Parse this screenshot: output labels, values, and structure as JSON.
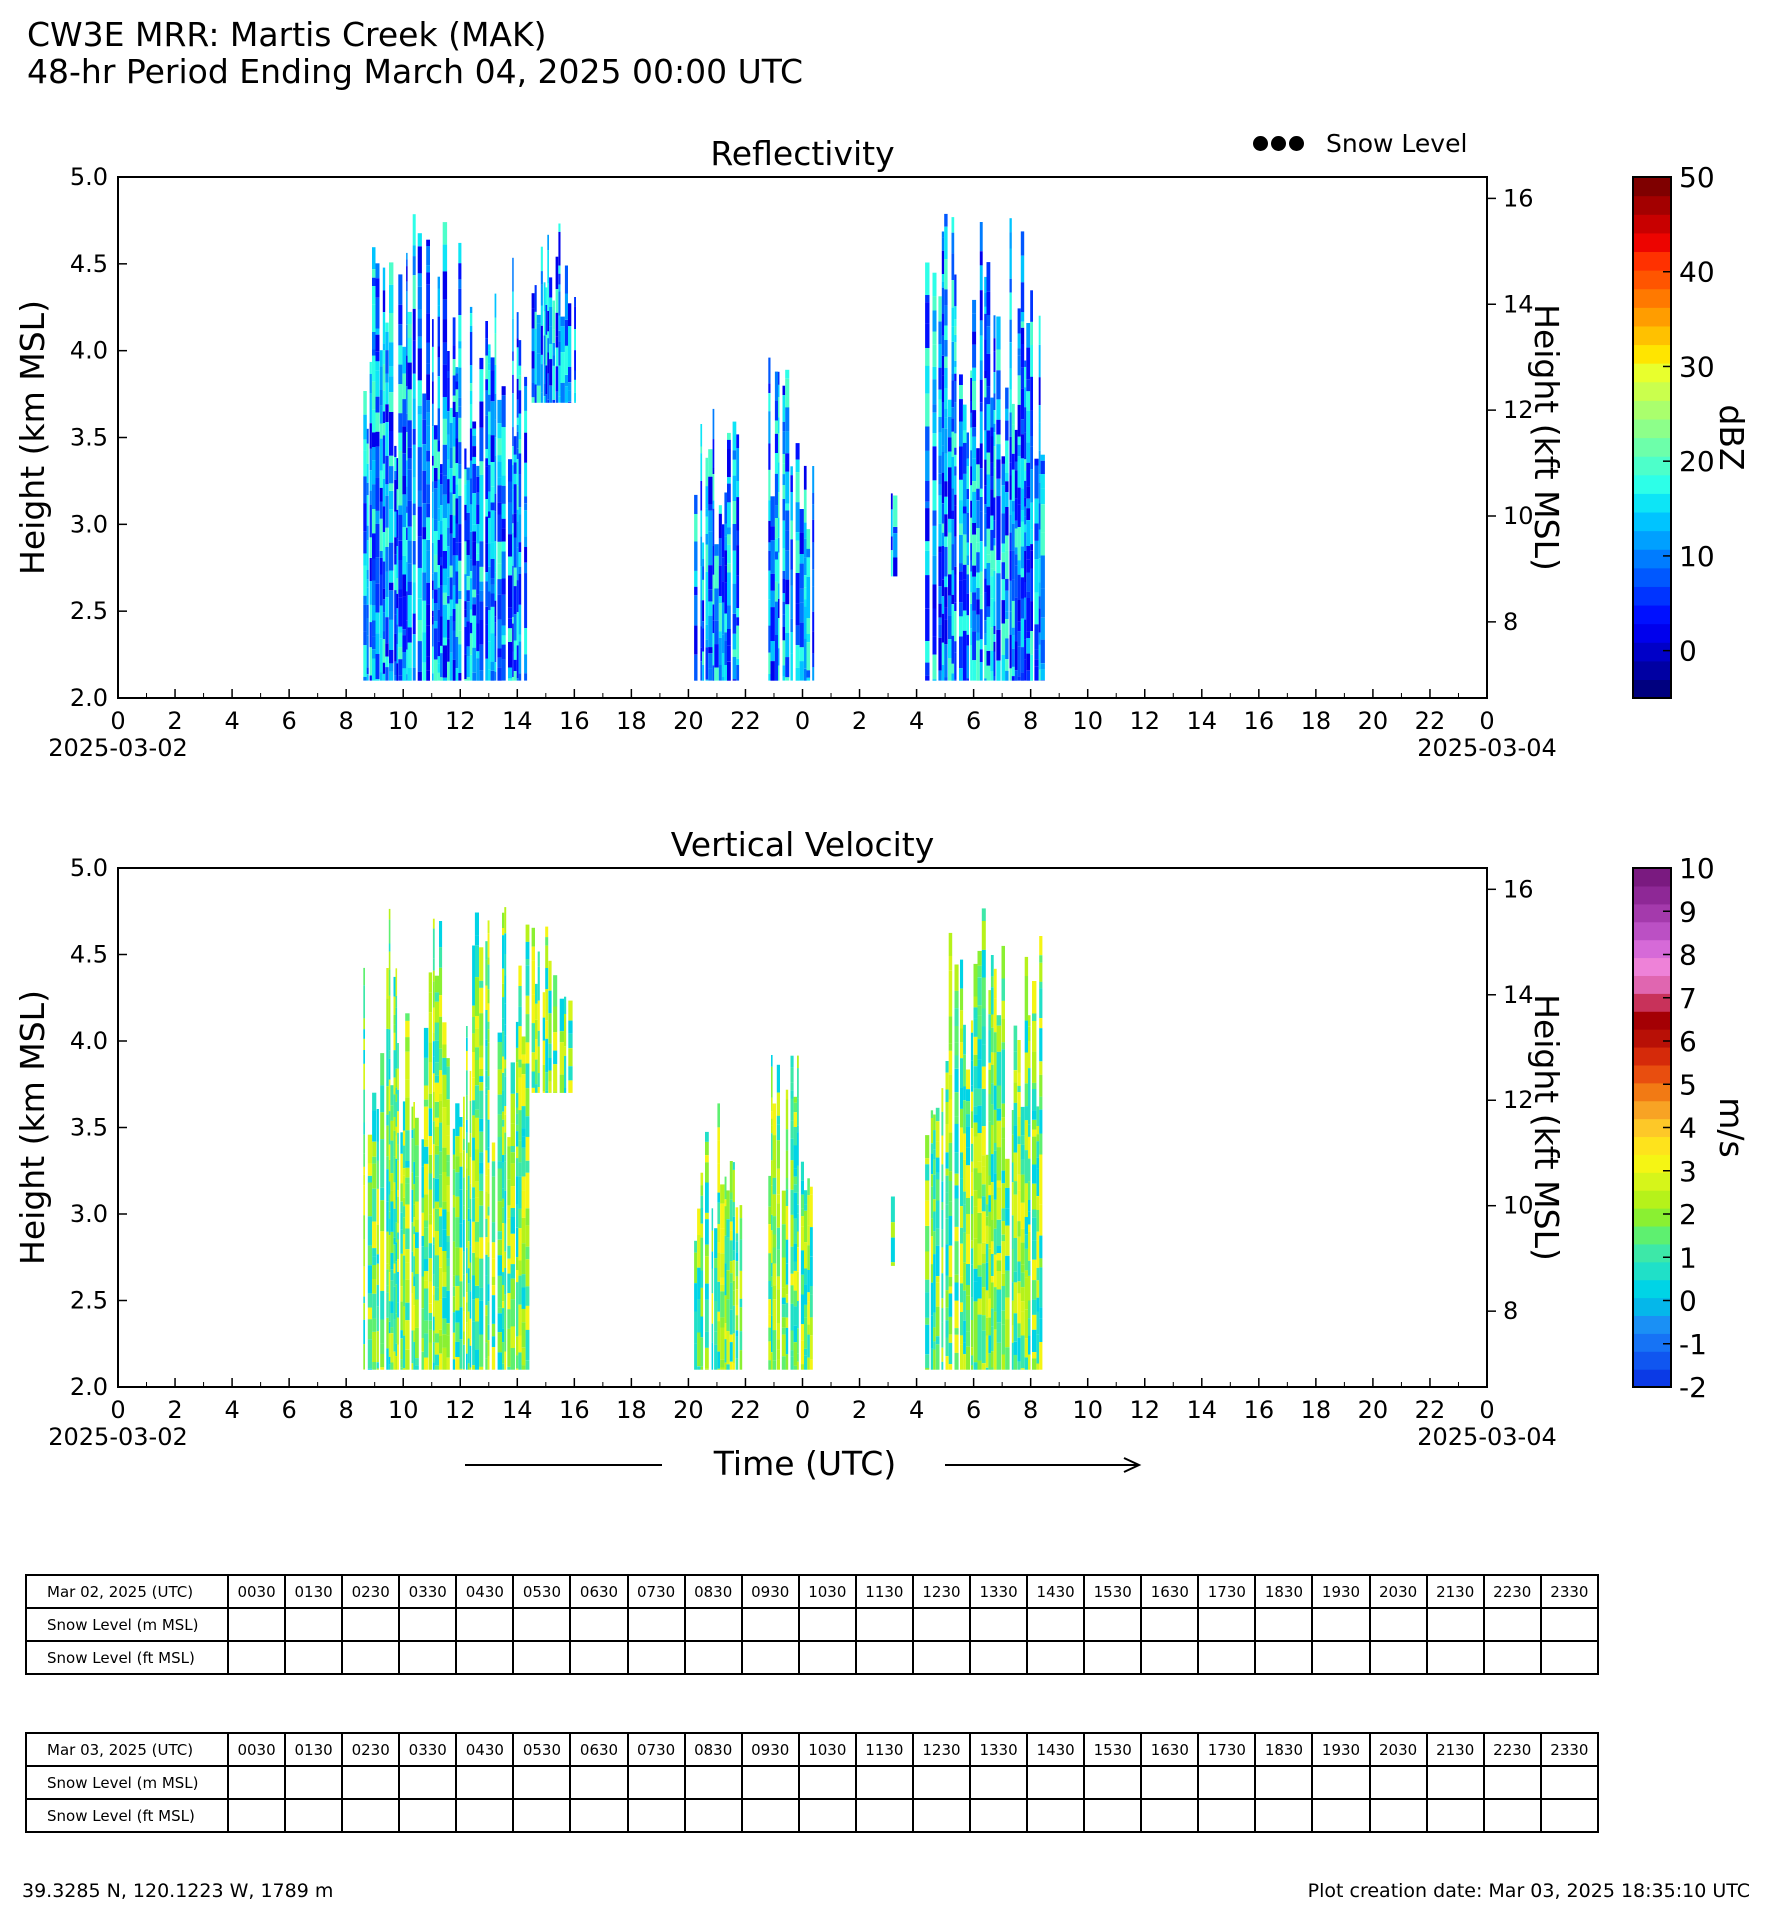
{
  "page": {
    "title": "CW3E MRR: Martis Creek (MAK)",
    "subtitle": "48-hr Period Ending March 04, 2025 00:00 UTC",
    "legend_label": "Snow Level",
    "time_axis_label": "Time (UTC)",
    "footer_location": "39.3285 N, 120.1223 W, 1789 m",
    "footer_date": "Plot creation date: Mar 03, 2025 18:35:10 UTC"
  },
  "chart_data": [
    {
      "type": "heatmap",
      "title": "Reflectivity",
      "ylabel": "Height (km MSL)",
      "ylabel_right": "Height (kft MSL)",
      "colorbar_label": "dBZ",
      "ylim": [
        2.0,
        5.0
      ],
      "yticks": [
        "2.0",
        "2.5",
        "3.0",
        "3.5",
        "4.0",
        "4.5",
        "5.0"
      ],
      "yticks_right": [
        "8",
        "10",
        "12",
        "14",
        "16"
      ],
      "xlim_hours": [
        0,
        48
      ],
      "xticks": [
        "0",
        "2",
        "4",
        "6",
        "8",
        "10",
        "12",
        "14",
        "16",
        "18",
        "20",
        "22",
        "0",
        "2",
        "4",
        "6",
        "8",
        "10",
        "12",
        "14",
        "16",
        "18",
        "20",
        "22",
        "0"
      ],
      "date_labels": [
        "2025-03-02",
        "2025-03-04"
      ],
      "colorbar_range": [
        -5,
        50
      ],
      "colorbar_ticks": [
        "0",
        "10",
        "20",
        "30",
        "40",
        "50"
      ],
      "colors": [
        "#00007f",
        "#0000a3",
        "#0000c8",
        "#0000ed",
        "#0010ff",
        "#0034ff",
        "#0058ff",
        "#007cff",
        "#00a0ff",
        "#00c4ff",
        "#0de5f6",
        "#2dffe8",
        "#4dffca",
        "#6dffaa",
        "#8dff8a",
        "#aaff6d",
        "#caff4d",
        "#e8ff2d",
        "#ffe500",
        "#ffc100",
        "#ff9d00",
        "#ff7900",
        "#ff5500",
        "#ff3100",
        "#ed0400",
        "#c80000",
        "#a30000",
        "#7f0000"
      ],
      "echoes": [
        {
          "t_start": 8.6,
          "t_end": 14.3,
          "h_bottom": 2.1,
          "h_top": 4.8
        },
        {
          "t_start": 14.5,
          "t_end": 16.0,
          "h_bottom": 3.7,
          "h_top": 4.8
        },
        {
          "t_start": 20.2,
          "t_end": 21.8,
          "h_bottom": 2.1,
          "h_top": 3.7
        },
        {
          "t_start": 22.8,
          "t_end": 24.4,
          "h_bottom": 2.1,
          "h_top": 4.0
        },
        {
          "t_start": 27.1,
          "t_end": 27.2,
          "h_bottom": 2.7,
          "h_top": 3.2
        },
        {
          "t_start": 28.3,
          "t_end": 32.4,
          "h_bottom": 2.1,
          "h_top": 4.8
        }
      ]
    },
    {
      "type": "heatmap",
      "title": "Vertical Velocity",
      "ylabel": "Height (km MSL)",
      "ylabel_right": "Height (kft MSL)",
      "colorbar_label": "m/s",
      "ylim": [
        2.0,
        5.0
      ],
      "yticks": [
        "2.0",
        "2.5",
        "3.0",
        "3.5",
        "4.0",
        "4.5",
        "5.0"
      ],
      "yticks_right": [
        "8",
        "10",
        "12",
        "14",
        "16"
      ],
      "xlim_hours": [
        0,
        48
      ],
      "xticks": [
        "0",
        "2",
        "4",
        "6",
        "8",
        "10",
        "12",
        "14",
        "16",
        "18",
        "20",
        "22",
        "0",
        "2",
        "4",
        "6",
        "8",
        "10",
        "12",
        "14",
        "16",
        "18",
        "20",
        "22",
        "0"
      ],
      "date_labels": [
        "2025-03-02",
        "2025-03-04"
      ],
      "colorbar_range": [
        -2,
        10
      ],
      "colorbar_ticks": [
        "-2",
        "-1",
        "0",
        "1",
        "2",
        "3",
        "4",
        "5",
        "6",
        "7",
        "8",
        "9",
        "10"
      ],
      "colors": [
        "#0b3ae6",
        "#1056f0",
        "#1673f5",
        "#1a90f5",
        "#05b7ea",
        "#00d4e6",
        "#20e0c8",
        "#3de8a8",
        "#5ef070",
        "#8af032",
        "#b6f21a",
        "#d6f51a",
        "#f5f514",
        "#fee31c",
        "#fdc828",
        "#f8a324",
        "#f27a14",
        "#e84e0f",
        "#d52a0a",
        "#b81006",
        "#a40004",
        "#c8325a",
        "#e066b0",
        "#ee82d8",
        "#d66ad8",
        "#bb50c4",
        "#a43aac",
        "#8e2896",
        "#7a1a80"
      ],
      "echoes": [
        {
          "t_start": 8.6,
          "t_end": 14.3,
          "h_bottom": 2.1,
          "h_top": 4.8
        },
        {
          "t_start": 14.5,
          "t_end": 16.0,
          "h_bottom": 3.7,
          "h_top": 4.8
        },
        {
          "t_start": 20.2,
          "t_end": 21.8,
          "h_bottom": 2.1,
          "h_top": 3.7
        },
        {
          "t_start": 22.8,
          "t_end": 24.4,
          "h_bottom": 2.1,
          "h_top": 4.0
        },
        {
          "t_start": 27.1,
          "t_end": 27.2,
          "h_bottom": 2.7,
          "h_top": 3.2
        },
        {
          "t_start": 28.3,
          "t_end": 32.4,
          "h_bottom": 2.1,
          "h_top": 4.8
        }
      ]
    }
  ],
  "tables": [
    {
      "header": "Mar 02, 2025 (UTC)",
      "times": [
        "0030",
        "0130",
        "0230",
        "0330",
        "0430",
        "0530",
        "0630",
        "0730",
        "0830",
        "0930",
        "1030",
        "1130",
        "1230",
        "1330",
        "1430",
        "1530",
        "1630",
        "1730",
        "1830",
        "1930",
        "2030",
        "2130",
        "2230",
        "2330"
      ],
      "row_labels": [
        "Snow Level (m MSL)",
        "Snow Level (ft MSL)"
      ]
    },
    {
      "header": "Mar 03, 2025 (UTC)",
      "times": [
        "0030",
        "0130",
        "0230",
        "0330",
        "0430",
        "0530",
        "0630",
        "0730",
        "0830",
        "0930",
        "1030",
        "1130",
        "1230",
        "1330",
        "1430",
        "1530",
        "1630",
        "1730",
        "1830",
        "1930",
        "2030",
        "2130",
        "2230",
        "2330"
      ],
      "row_labels": [
        "Snow Level (m MSL)",
        "Snow Level (ft MSL)"
      ]
    }
  ]
}
